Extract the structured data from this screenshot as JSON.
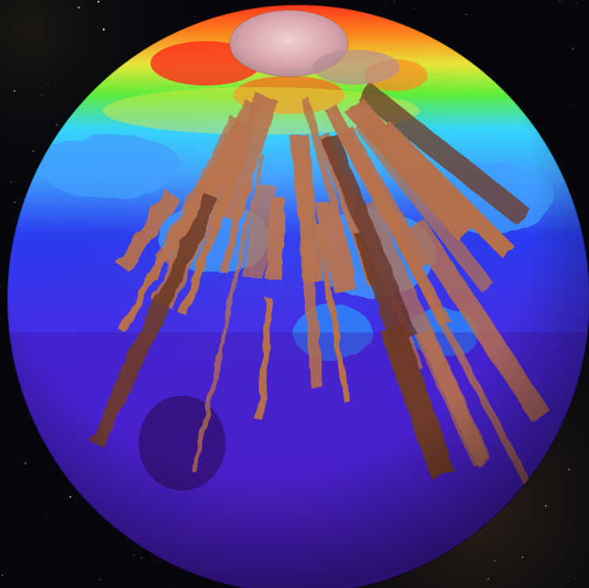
{
  "scene": {
    "subject": "globe",
    "background": "starfield",
    "palette": {
      "space": "#05070c",
      "space_haze": "#3a2a1c",
      "violet": "#5a21d8",
      "deep_violet": "#3d15a6",
      "blue": "#2a3cf0",
      "light_blue": "#3fa0ff",
      "cyan": "#35d6ff",
      "green": "#5ef03a",
      "yellow": "#e8e83a",
      "orange": "#ff8a1e",
      "red": "#ff2a1a",
      "polar_cap": "#e8b8c0",
      "copper": "#b8704a",
      "dark_copper": "#6e3a26"
    }
  }
}
